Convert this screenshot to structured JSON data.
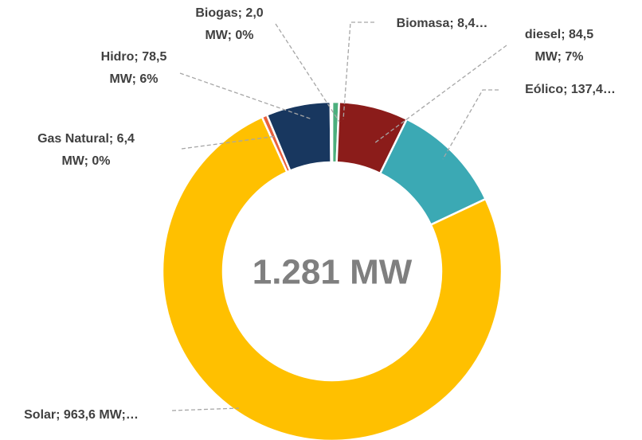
{
  "chart_data": {
    "type": "donut",
    "center_label": "1.281 MW",
    "categories": [
      "Biomasa",
      "diesel",
      "Eólico",
      "Solar",
      "Gas Natural",
      "Hidro",
      "Biogas"
    ],
    "values": [
      8.4,
      84.5,
      137.4,
      963.6,
      6.4,
      78.5,
      2.0
    ],
    "value_labels": [
      [
        "Biomasa; 8,4…"
      ],
      [
        "diesel; 84,5",
        "MW; 7%"
      ],
      [
        "Eólico; 137,4…"
      ],
      [
        "Solar; 963,6 MW;…"
      ],
      [
        "Gas Natural; 6,4",
        "MW; 0%"
      ],
      [
        "Hidro; 78,5",
        "MW; 6%"
      ],
      [
        "Biogas; 2,0",
        "MW; 0%"
      ]
    ],
    "colors": [
      "#4caf7d",
      "#8b1c1a",
      "#3ba9b4",
      "#ffc000",
      "#e8603c",
      "#18375f",
      "#8c8c8c"
    ]
  }
}
